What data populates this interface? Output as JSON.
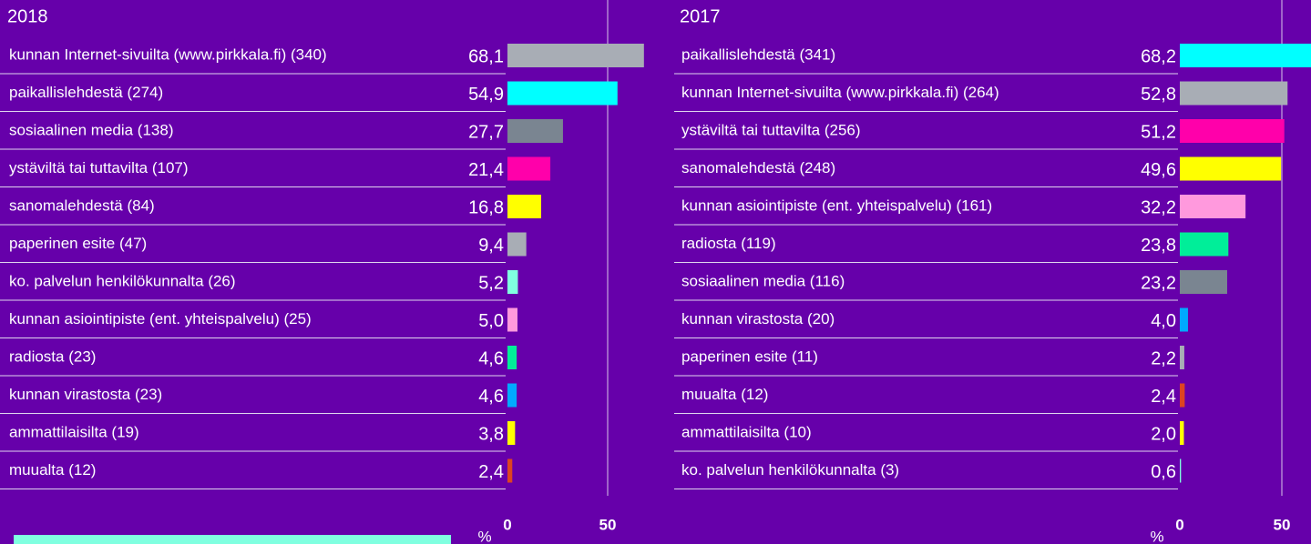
{
  "chart_data": [
    {
      "type": "bar",
      "orientation": "horizontal",
      "title": "2018",
      "x_label": "%",
      "categories": [
        "kunnan Internet-sivuilta (www.pirkkala.fi) (340)",
        "paikallislehdestä (274)",
        "sosiaalinen media (138)",
        "ystäviltä tai tuttavilta (107)",
        "sanomalehdestä (84)",
        "paperinen esite (47)",
        "ko. palvelun henkilökunnalta (26)",
        "kunnan asiointipiste (ent. yhteispalvelu) (25)",
        "radiosta (23)",
        "kunnan virastosta (23)",
        "ammattilaisilta (19)",
        "muualta (12)"
      ],
      "values": [
        68.1,
        54.9,
        27.7,
        21.4,
        16.8,
        9.4,
        5.2,
        5.0,
        4.6,
        4.6,
        3.8,
        2.4
      ],
      "value_labels": [
        "68,1",
        "54,9",
        "27,7",
        "21,4",
        "16,8",
        "9,4",
        "5,2",
        "5,0",
        "4,6",
        "4,6",
        "3,8",
        "2,4"
      ],
      "colors": [
        "#a8adb5",
        "#00ffff",
        "#7a8591",
        "#ff00aa",
        "#ffff00",
        "#a8adb5",
        "#80ffe0",
        "#ff99dd",
        "#00ee99",
        "#00aaff",
        "#ffff00",
        "#dd4422"
      ],
      "xlim": [
        0,
        50
      ],
      "xticks": [
        0,
        50
      ]
    },
    {
      "type": "bar",
      "orientation": "horizontal",
      "title": "2017",
      "x_label": "%",
      "categories": [
        "paikallislehdestä (341)",
        "kunnan Internet-sivuilta (www.pirkkala.fi) (264)",
        "ystäviltä tai tuttavilta (256)",
        "sanomalehdestä (248)",
        "kunnan asiointipiste (ent. yhteispalvelu) (161)",
        "radiosta (119)",
        "sosiaalinen media (116)",
        "kunnan virastosta (20)",
        "paperinen esite (11)",
        "muualta (12)",
        "ammattilaisilta (10)",
        "ko. palvelun henkilökunnalta (3)"
      ],
      "values": [
        68.2,
        52.8,
        51.2,
        49.6,
        32.2,
        23.8,
        23.2,
        4.0,
        2.2,
        2.4,
        2.0,
        0.6
      ],
      "value_labels": [
        "68,2",
        "52,8",
        "51,2",
        "49,6",
        "32,2",
        "23,8",
        "23,2",
        "4,0",
        "2,2",
        "2,4",
        "2,0",
        "0,6"
      ],
      "colors": [
        "#00ffff",
        "#a8adb5",
        "#ff00aa",
        "#ffff00",
        "#ff99dd",
        "#00ee99",
        "#7a8591",
        "#00aaff",
        "#a8adb5",
        "#dd4422",
        "#ffff00",
        "#80ffe0"
      ],
      "xlim": [
        0,
        50
      ],
      "xticks": [
        0,
        50
      ]
    }
  ]
}
